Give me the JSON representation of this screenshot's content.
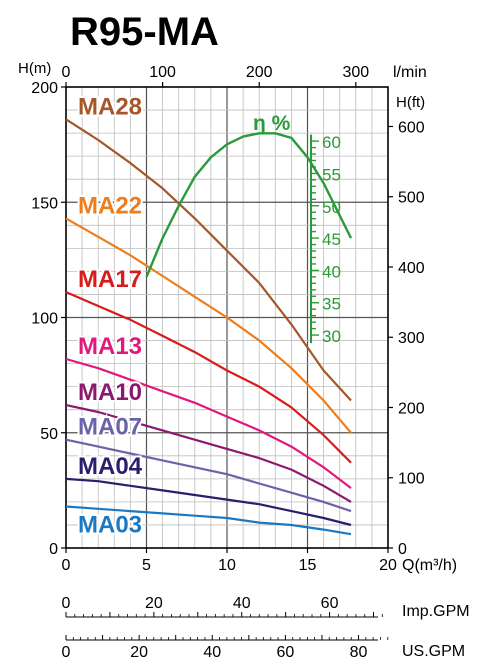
{
  "title": "R95-MA",
  "colors": {
    "grid_minor": "#bdbdbd",
    "grid_major": "#555555",
    "axis": "#000000",
    "efficiency": "#2a9a3a"
  },
  "chart_data": {
    "type": "line",
    "title": "R95-MA",
    "x_axis": {
      "label": "Q(m³/h)",
      "range": [
        0,
        20
      ],
      "ticks": [
        0,
        5,
        10,
        15,
        20
      ]
    },
    "x_top_axis": {
      "label": "l/min",
      "range": [
        0,
        333.3
      ],
      "ticks": [
        0,
        100,
        200,
        300
      ]
    },
    "y_axis": {
      "label": "H(m)",
      "range": [
        0,
        200
      ],
      "ticks": [
        0,
        50,
        100,
        150,
        200
      ]
    },
    "y_right_axis": {
      "label": "H(ft)",
      "range": [
        0,
        656.2
      ],
      "ticks": [
        0,
        100,
        200,
        300,
        400,
        500,
        600
      ]
    },
    "efficiency_axis": {
      "label": "η %",
      "range": [
        28,
        64.5
      ],
      "ticks": [
        30,
        35,
        40,
        45,
        50,
        55,
        60
      ]
    },
    "bottom_scales": [
      {
        "label": "Imp.GPM",
        "range": [
          0,
          73.3
        ],
        "ticks": [
          0,
          20,
          40,
          60
        ]
      },
      {
        "label": "US.GPM",
        "range": [
          0,
          88.06
        ],
        "ticks": [
          0,
          20,
          40,
          60,
          80
        ]
      }
    ],
    "grid": true,
    "series": [
      {
        "name": "MA28",
        "color": "#a5572a",
        "x": [
          0,
          2,
          4,
          6,
          8,
          10,
          12,
          14,
          16,
          17.7
        ],
        "y": [
          186,
          177,
          167,
          156,
          143,
          129,
          115,
          97,
          77,
          64
        ]
      },
      {
        "name": "MA22",
        "color": "#ee7d1d",
        "x": [
          0,
          2,
          4,
          6,
          8,
          10,
          12,
          14,
          16,
          17.7
        ],
        "y": [
          143,
          135,
          127,
          118,
          109,
          100,
          90,
          78,
          64,
          50
        ]
      },
      {
        "name": "MA17",
        "color": "#d81b1b",
        "x": [
          0,
          2,
          4,
          6,
          8,
          10,
          12,
          14,
          16,
          17.7
        ],
        "y": [
          111,
          105,
          99,
          92,
          85,
          77,
          70,
          61,
          49,
          37
        ]
      },
      {
        "name": "MA13",
        "color": "#e0197d",
        "x": [
          0,
          2,
          4,
          6,
          8,
          10,
          12,
          14,
          16,
          17.7
        ],
        "y": [
          82,
          78,
          73,
          68,
          63,
          57,
          51,
          44,
          35,
          26
        ]
      },
      {
        "name": "MA10",
        "color": "#8b1a6e",
        "x": [
          0,
          2,
          4,
          6,
          8,
          10,
          12,
          14,
          16,
          17.7
        ],
        "y": [
          62,
          59,
          55,
          51,
          47,
          43,
          39,
          34,
          27,
          20
        ]
      },
      {
        "name": "MA07",
        "color": "#6a63a8",
        "x": [
          0,
          2,
          4,
          6,
          8,
          10,
          12,
          14,
          16,
          17.7
        ],
        "y": [
          47,
          44,
          41,
          38,
          35,
          32,
          28,
          24,
          20,
          16
        ]
      },
      {
        "name": "MA04",
        "color": "#2a1e6e",
        "x": [
          0,
          2,
          4,
          6,
          8,
          10,
          12,
          14,
          16,
          17.7
        ],
        "y": [
          30,
          29,
          27,
          25,
          23,
          21,
          19,
          16,
          13,
          10
        ]
      },
      {
        "name": "MA03",
        "color": "#1b79c4",
        "x": [
          0,
          2,
          4,
          6,
          8,
          10,
          12,
          14,
          16,
          17.7
        ],
        "y": [
          18,
          17,
          16,
          15,
          14,
          13,
          11,
          10,
          8,
          6
        ]
      }
    ],
    "efficiency_curve": {
      "name": "η %",
      "color": "#2a9a3a",
      "x": [
        5,
        6,
        7,
        8,
        9,
        10,
        11,
        12,
        13,
        14,
        15,
        16,
        17,
        17.7
      ],
      "y": [
        39,
        45,
        50,
        54.5,
        57.5,
        59.5,
        60.7,
        61.2,
        61.2,
        60.5,
        57.5,
        53.5,
        48.5,
        45
      ]
    }
  }
}
